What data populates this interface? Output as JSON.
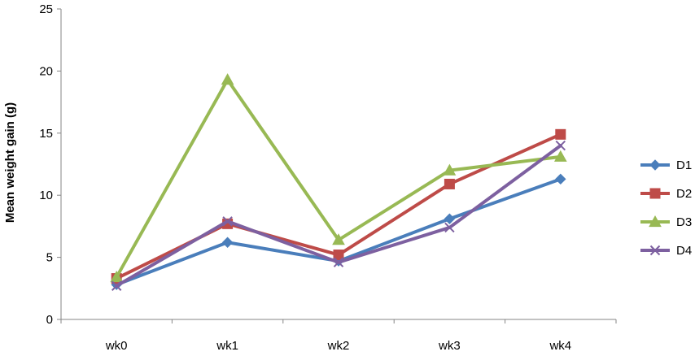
{
  "chart_data": {
    "type": "line",
    "title": "",
    "xlabel": "",
    "ylabel": "Mean weight gain (g)",
    "categories": [
      "wk0",
      "wk1",
      "wk2",
      "wk3",
      "wk4"
    ],
    "ylim": [
      0,
      25
    ],
    "yticks": [
      0,
      5,
      10,
      15,
      20,
      25
    ],
    "grid": false,
    "legend_position": "right",
    "series": [
      {
        "name": "D1",
        "values": [
          2.8,
          6.2,
          4.7,
          8.1,
          11.3
        ],
        "color": "#4A7EBB",
        "marker": "diamond"
      },
      {
        "name": "D2",
        "values": [
          3.3,
          7.7,
          5.2,
          10.9,
          14.9
        ],
        "color": "#BE4B48",
        "marker": "square"
      },
      {
        "name": "D3",
        "values": [
          3.4,
          19.3,
          6.4,
          12.0,
          13.1
        ],
        "color": "#98B954",
        "marker": "triangle"
      },
      {
        "name": "D4",
        "values": [
          2.7,
          7.9,
          4.6,
          7.4,
          14.0
        ],
        "color": "#7D60A0",
        "marker": "x"
      }
    ]
  }
}
